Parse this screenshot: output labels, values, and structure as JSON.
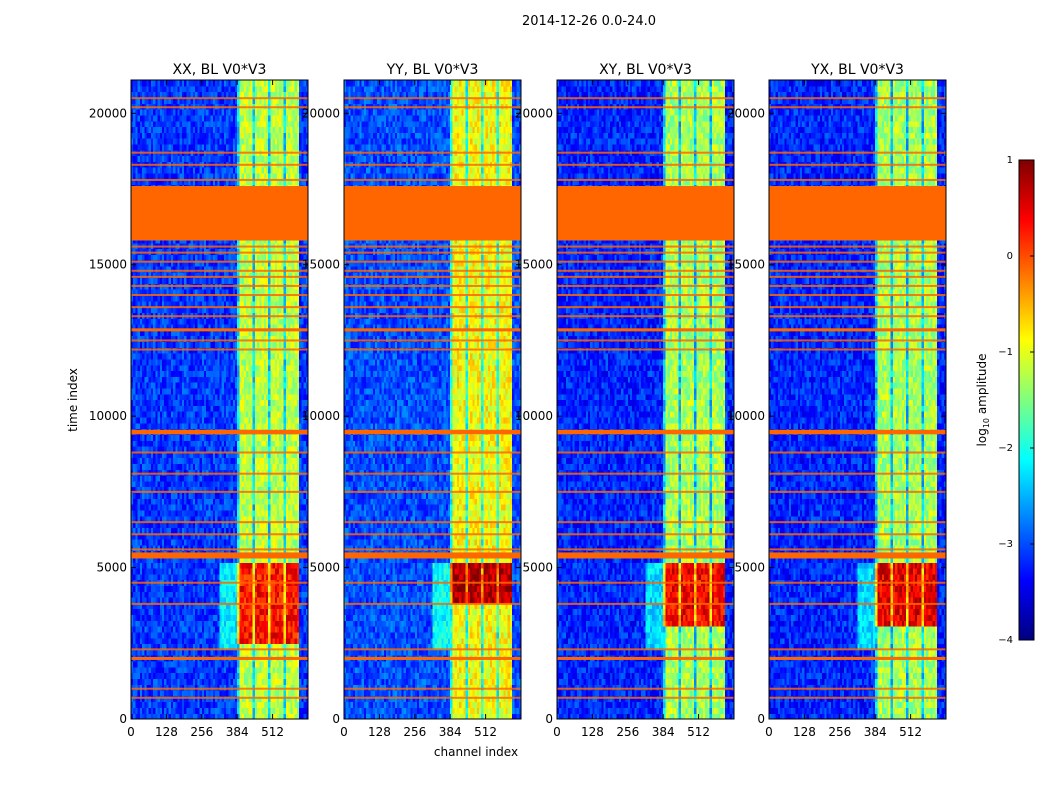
{
  "figure": {
    "title": "2014-12-26 0.0-24.0"
  },
  "chart_data": {
    "type": "heatmap",
    "title": "2014-12-26 0.0-24.0",
    "xlabel": "channel index",
    "ylabel": "time index",
    "xlim": [
      0,
      640
    ],
    "ylim": [
      0,
      21100
    ],
    "xticks": [
      0,
      128,
      256,
      384,
      512
    ],
    "xtick_labels": [
      "0",
      "128",
      "256",
      "384",
      "512"
    ],
    "yticks": [
      0,
      5000,
      10000,
      15000,
      20000
    ],
    "ytick_labels": [
      "0",
      "5000",
      "10000",
      "15000",
      "20000"
    ],
    "colorbar": {
      "label": "log10 amplitude",
      "label_main": "log",
      "label_sub": "10",
      "label_tail": " amplitude",
      "range": [
        -4,
        1
      ],
      "ticks": [
        1,
        0,
        -1,
        -2,
        -3,
        -4
      ],
      "tick_labels": [
        "1",
        "0",
        "−1",
        "−2",
        "−3",
        "−4"
      ],
      "colormap": "jet",
      "stops": [
        "#00007f",
        "#0000ff",
        "#007fff",
        "#00ffff",
        "#7fff7f",
        "#ffff00",
        "#ff7f00",
        "#ff0000",
        "#7f0000"
      ]
    },
    "flag_color": "#ff6600",
    "flagged_blocks": [
      [
        15800,
        17600
      ],
      [
        9400,
        9550
      ],
      [
        5300,
        5500
      ],
      [
        1950,
        2050
      ],
      [
        12800,
        12900
      ]
    ],
    "flagged_lines": [
      20500,
      20200,
      18700,
      18300,
      17800,
      15600,
      15400,
      15100,
      14800,
      14600,
      14300,
      14000,
      13600,
      13300,
      12500,
      12200,
      8800,
      8100,
      7500,
      6500,
      6100,
      5600,
      4500,
      3800,
      2300,
      1000,
      700
    ],
    "panels": [
      {
        "title": "XX, BL V0*V3",
        "rfi_channels": [
          384,
          608
        ],
        "bright_rows": [
          2500,
          5200
        ],
        "bright_level": 0.3,
        "band_level": -1.2,
        "background_level": -3.1
      },
      {
        "title": "YY, BL V0*V3",
        "rfi_channels": [
          384,
          608
        ],
        "bright_rows": [
          3800,
          5200
        ],
        "bright_level": 0.8,
        "band_level": -0.9,
        "background_level": -3.0
      },
      {
        "title": "XY, BL V0*V3",
        "rfi_channels": [
          384,
          608
        ],
        "bright_rows": [
          3000,
          5200
        ],
        "bright_level": 0.4,
        "band_level": -1.3,
        "background_level": -3.2
      },
      {
        "title": "YX, BL V0*V3",
        "rfi_channels": [
          384,
          608
        ],
        "bright_rows": [
          3000,
          5200
        ],
        "bright_level": 0.5,
        "band_level": -1.3,
        "background_level": -3.2
      }
    ]
  }
}
